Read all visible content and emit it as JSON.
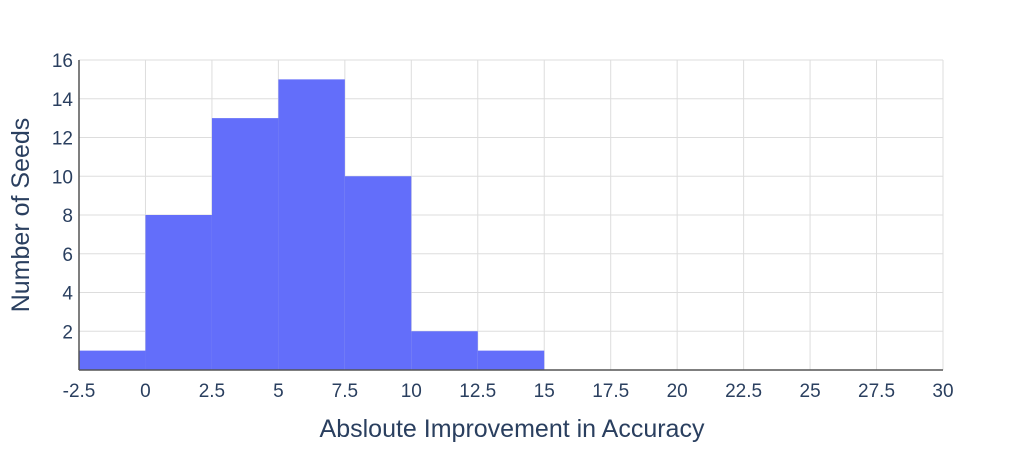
{
  "chart_data": {
    "type": "bar",
    "subtype": "histogram",
    "bin_width": 2.5,
    "bins": [
      {
        "start": -2.5,
        "end": 0,
        "count": 1
      },
      {
        "start": 0,
        "end": 2.5,
        "count": 8
      },
      {
        "start": 2.5,
        "end": 5,
        "count": 13
      },
      {
        "start": 5,
        "end": 7.5,
        "count": 15
      },
      {
        "start": 7.5,
        "end": 10,
        "count": 10
      },
      {
        "start": 10,
        "end": 12.5,
        "count": 2
      },
      {
        "start": 12.5,
        "end": 15,
        "count": 1
      }
    ],
    "xlabel": "Absloute Improvement in Accuracy",
    "ylabel": "Number of Seeds",
    "xlim": [
      -2.5,
      30
    ],
    "ylim": [
      0,
      16
    ],
    "x_ticks": [
      "-2.5",
      "0",
      "2.5",
      "5",
      "7.5",
      "10",
      "12.5",
      "15",
      "17.5",
      "20",
      "22.5",
      "25",
      "27.5",
      "30"
    ],
    "y_ticks": [
      "2",
      "4",
      "6",
      "8",
      "10",
      "12",
      "14",
      "16"
    ],
    "bar_color": "#636efa",
    "grid": true
  }
}
